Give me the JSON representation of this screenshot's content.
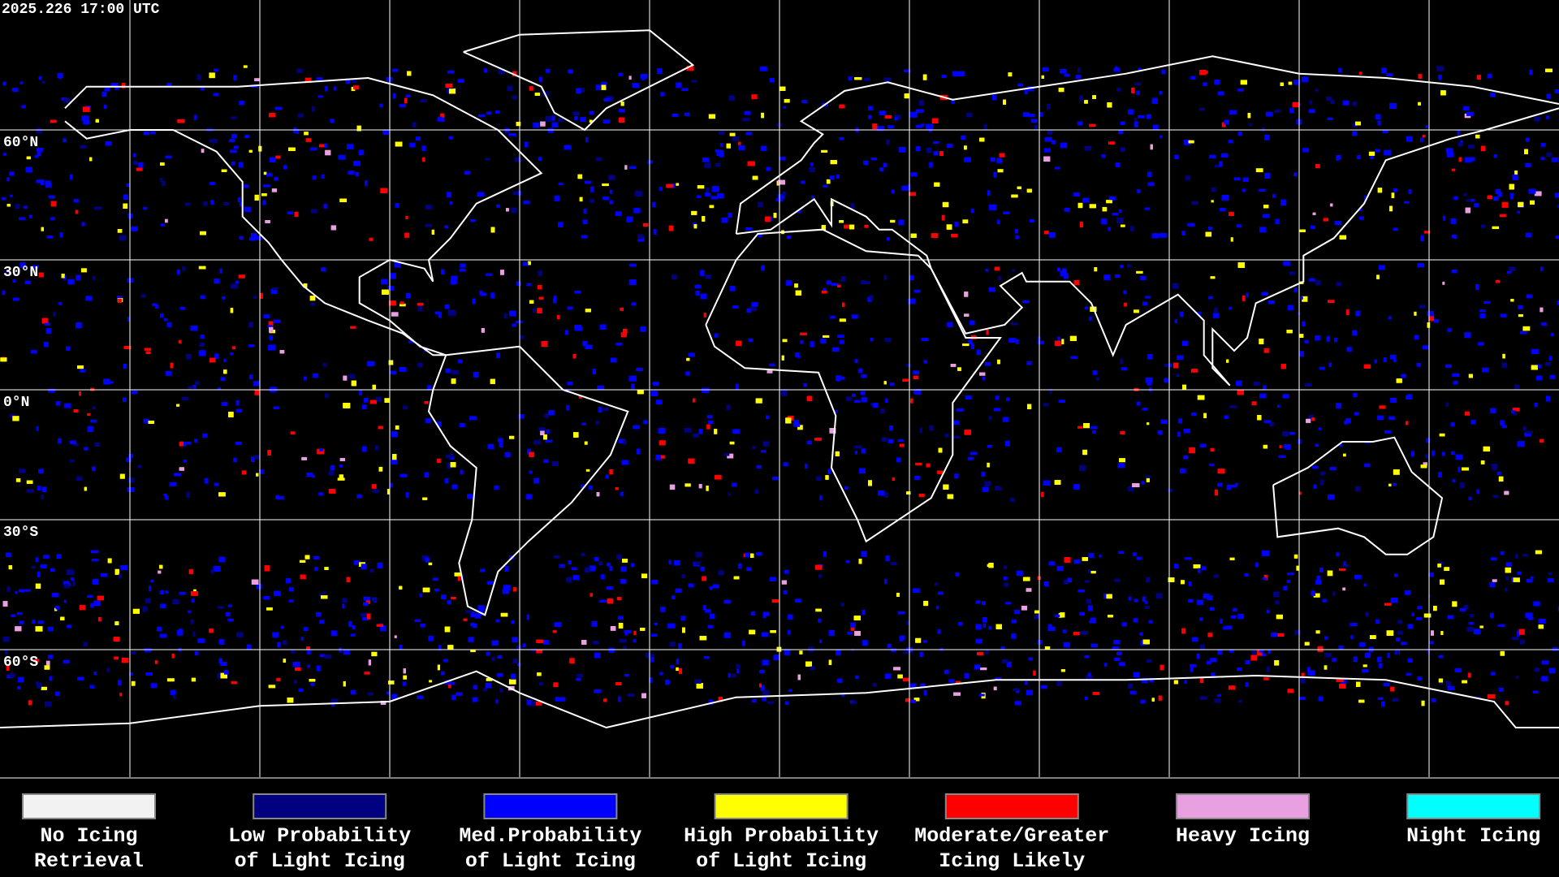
{
  "header": {
    "timestamp": "2025.226 17:00 UTC"
  },
  "map": {
    "latitude_labels": [
      "60°N",
      "30°N",
      "0°N",
      "30°S",
      "60°S"
    ]
  },
  "legend": {
    "items": [
      {
        "label_lines": [
          "No Icing",
          "Retrieval"
        ],
        "color": "#f2f2f2"
      },
      {
        "label_lines": [
          "Low Probability",
          "of Light Icing"
        ],
        "color": "#000080"
      },
      {
        "label_lines": [
          "Med.Probability",
          "of Light Icing"
        ],
        "color": "#0000ff"
      },
      {
        "label_lines": [
          "High Probability",
          "of Light Icing"
        ],
        "color": "#ffff00"
      },
      {
        "label_lines": [
          "Moderate/Greater",
          "Icing Likely"
        ],
        "color": "#ff0000"
      },
      {
        "label_lines": [
          "Heavy Icing"
        ],
        "color": "#e8a0e0"
      },
      {
        "label_lines": [
          "Night Icing"
        ],
        "color": "#00ffff"
      }
    ]
  }
}
